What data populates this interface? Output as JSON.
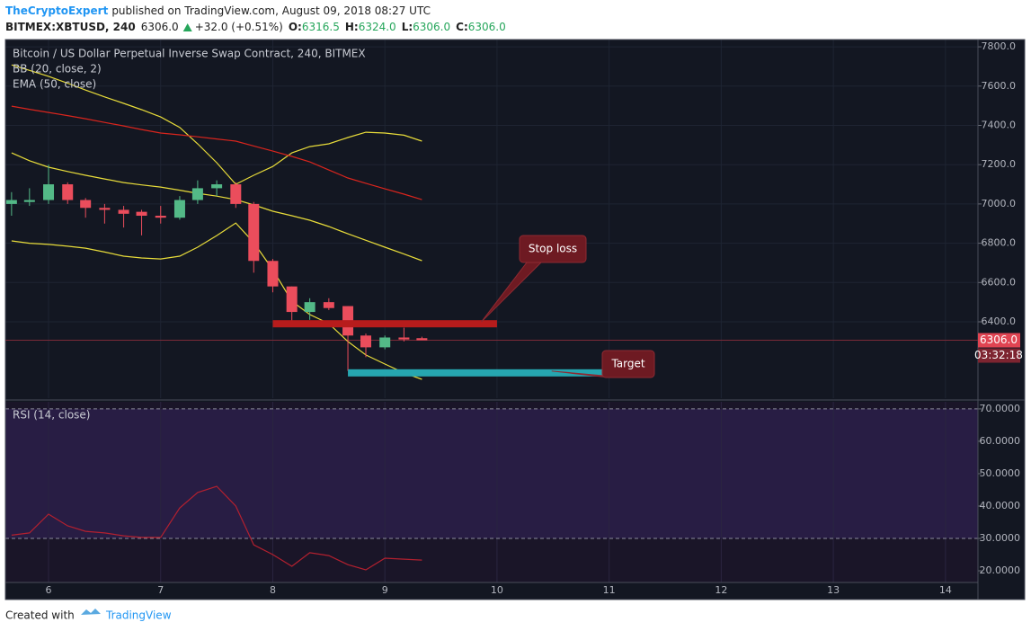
{
  "header": {
    "author": "TheCryptoExpert",
    "published": "published on TradingView.com, August 09, 2018 08:27 UTC",
    "symbol": "BITMEX:XBTUSD, 240",
    "last": "6306.0",
    "change": "+32.0 (+0.51%)",
    "ohlc": [
      {
        "label": "O:",
        "value": "6316.5"
      },
      {
        "label": "H:",
        "value": "6324.0"
      },
      {
        "label": "L:",
        "value": "6306.0"
      },
      {
        "label": "C:",
        "value": "6306.0"
      }
    ]
  },
  "footer": {
    "created": "Created with",
    "brand": "TradingView"
  },
  "chart_data": [
    {
      "type": "candlestick",
      "title": "Bitcoin / US Dollar Perpetual Inverse Swap Contract, 240, BITMEX",
      "indicators": [
        "BB (20, close, 2)",
        "EMA (50, close)"
      ],
      "x": [
        5.67,
        5.83,
        6.0,
        6.17,
        6.33,
        6.5,
        6.67,
        6.83,
        7.0,
        7.17,
        7.33,
        7.5,
        7.67,
        7.83,
        8.0,
        8.17,
        8.33,
        8.5,
        8.67,
        8.83,
        9.0,
        9.17,
        9.33
      ],
      "open": [
        7000,
        7010,
        7020,
        7100,
        7020,
        6980,
        6970,
        6960,
        6940,
        6930,
        7020,
        7080,
        7100,
        7000,
        6710,
        6580,
        6450,
        6500,
        6480,
        6330,
        6270,
        6320,
        6316.5
      ],
      "high": [
        7060,
        7080,
        7200,
        7110,
        7030,
        7000,
        6990,
        6970,
        6990,
        7040,
        7120,
        7120,
        7110,
        7010,
        6720,
        6580,
        6520,
        6520,
        6480,
        6340,
        6330,
        6370,
        6324
      ],
      "low": [
        6940,
        6990,
        7000,
        7000,
        6930,
        6900,
        6880,
        6840,
        6900,
        6920,
        7000,
        7040,
        6980,
        6650,
        6550,
        6400,
        6410,
        6460,
        6150,
        6220,
        6260,
        6300,
        6306
      ],
      "close": [
        7020,
        7020,
        7100,
        7020,
        6980,
        6970,
        6950,
        6940,
        6930,
        7020,
        7080,
        7100,
        7000,
        6710,
        6580,
        6450,
        6500,
        6470,
        6330,
        6270,
        6320,
        6310,
        6306
      ],
      "up_color": "#53b987",
      "down_color": "#eb4d5c",
      "lines": [
        {
          "color": "#e8dc3a",
          "values": [
            7708,
            7680,
            7650,
            7615,
            7580,
            7545,
            7512,
            7480,
            7443,
            7390,
            7306,
            7210,
            7100,
            7146,
            7191,
            7260,
            7292,
            7306,
            7338,
            7365,
            7361,
            7350,
            7320
          ]
        },
        {
          "color": "#e8dc3a",
          "values": [
            7260,
            7220,
            7187,
            7165,
            7146,
            7127,
            7109,
            7097,
            7086,
            7070,
            7054,
            7040,
            7022,
            6995,
            6963,
            6940,
            6917,
            6885,
            6848,
            6815,
            6780,
            6745,
            6711
          ]
        },
        {
          "color": "#e8dc3a",
          "values": [
            6812,
            6800,
            6794,
            6785,
            6775,
            6755,
            6734,
            6725,
            6720,
            6734,
            6780,
            6839,
            6903,
            6803,
            6665,
            6505,
            6437,
            6391,
            6300,
            6231,
            6185,
            6140,
            6107
          ]
        },
        {
          "color": "#d9251d",
          "values": [
            7498,
            7482,
            7466,
            7450,
            7434,
            7415,
            7397,
            7379,
            7361,
            7352,
            7342,
            7331,
            7320,
            7295,
            7269,
            7242,
            7214,
            7173,
            7132,
            7105,
            7077,
            7050,
            7022
          ]
        }
      ],
      "xlim": [
        5.615,
        14.29
      ],
      "xticks": [
        6,
        7,
        8,
        9,
        10,
        11,
        12,
        13,
        14
      ],
      "ylim": [
        6011,
        7837
      ],
      "yticks": [
        {
          "value": 6400,
          "label": "6400.0"
        },
        {
          "value": 6600,
          "label": "6600.0"
        },
        {
          "value": 6800,
          "label": "6800.0"
        },
        {
          "value": 7000,
          "label": "7000.0"
        },
        {
          "value": 7200,
          "label": "7200.0"
        },
        {
          "value": 7400,
          "label": "7400.0"
        },
        {
          "value": 7600,
          "label": "7600.0"
        },
        {
          "value": 7800,
          "label": "7800.0"
        }
      ],
      "grid": true,
      "last_price": {
        "value": 6306,
        "label": "6306.0"
      },
      "countdown": "03:32:18",
      "zones": [
        {
          "label": "Stop loss",
          "value": 6390,
          "x": [
            8,
            10
          ],
          "color": "#b71c1c"
        },
        {
          "label": "Target",
          "value": 6140,
          "x": [
            8.67,
            11.16
          ],
          "color": "#26a6b0"
        }
      ]
    },
    {
      "type": "line",
      "title": "RSI (14, close)",
      "color": "#b3202f",
      "x": [
        5.67,
        5.83,
        6.0,
        6.17,
        6.33,
        6.5,
        6.67,
        6.83,
        7.0,
        7.17,
        7.33,
        7.5,
        7.67,
        7.83,
        8.0,
        8.17,
        8.33,
        8.5,
        8.67,
        8.83,
        9.0,
        9.17,
        9.33
      ],
      "values": [
        31,
        31.7,
        37.5,
        33.9,
        32.2,
        31.7,
        30.8,
        30.3,
        30.3,
        39.4,
        44.2,
        46.1,
        40,
        28,
        25,
        21.4,
        25.6,
        24.7,
        21.9,
        20.3,
        23.9,
        23.6,
        23.3
      ],
      "xlim": [
        5.615,
        14.29
      ],
      "ylim": [
        16.4,
        72.2
      ],
      "yticks": [
        {
          "value": 20,
          "label": "20.0000"
        },
        {
          "value": 30,
          "label": "30.0000"
        },
        {
          "value": 40,
          "label": "40.0000"
        },
        {
          "value": 50,
          "label": "50.0000"
        },
        {
          "value": 60,
          "label": "60.0000"
        },
        {
          "value": 70,
          "label": "70.0000"
        }
      ],
      "levels": [
        30,
        70
      ]
    }
  ]
}
